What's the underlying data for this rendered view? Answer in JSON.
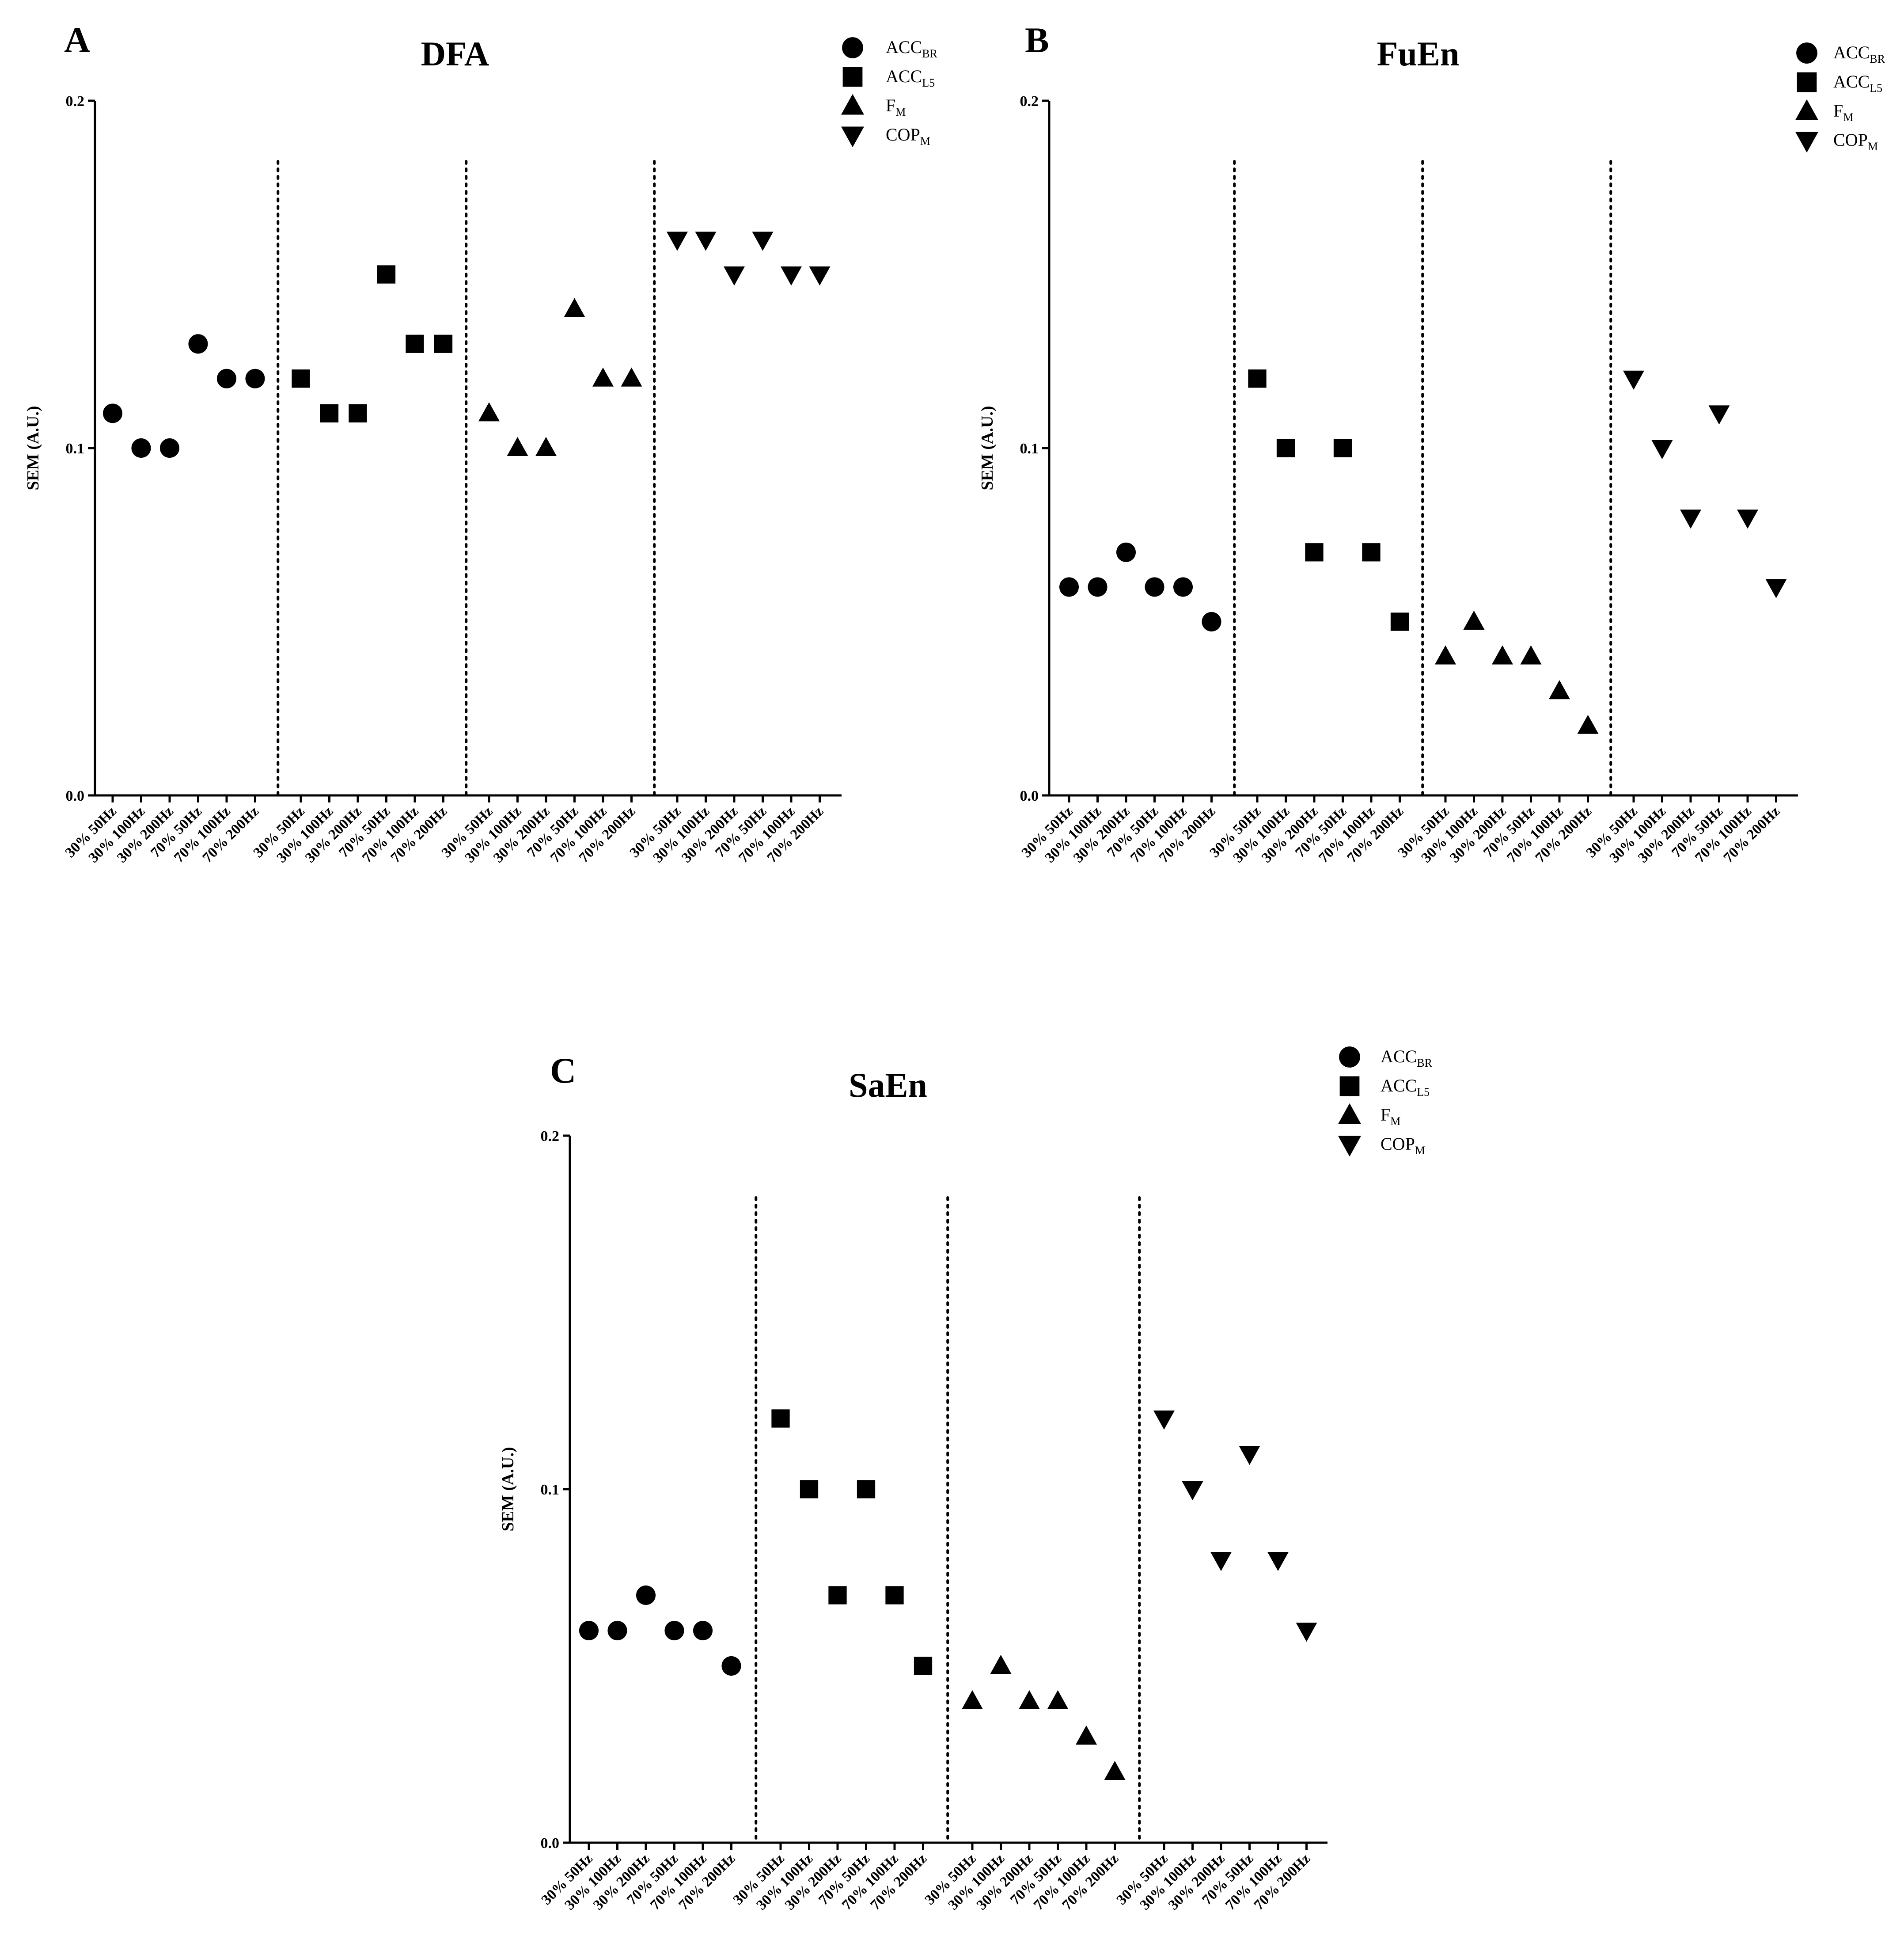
{
  "chart_data": [
    {
      "panel": "A",
      "type": "scatter",
      "title": "DFA",
      "ylabel": "SEM (A.U.)",
      "ylim": [
        0.0,
        0.2
      ],
      "yticks": [
        "0.0",
        "0.1",
        "0.2"
      ],
      "grid": false,
      "legend_position": "top-right",
      "categories": [
        "30% 50Hz",
        "30% 100Hz",
        "30% 200Hz",
        "70% 50Hz",
        "70% 100Hz",
        "70% 200Hz"
      ],
      "series": [
        {
          "name": "ACC",
          "sub": "BR",
          "marker": "circle",
          "values": [
            0.11,
            0.1,
            0.1,
            0.13,
            0.12,
            0.12
          ]
        },
        {
          "name": "ACC",
          "sub": "L5",
          "marker": "square",
          "values": [
            0.12,
            0.11,
            0.11,
            0.15,
            0.13,
            0.13
          ]
        },
        {
          "name": "F",
          "sub": "M",
          "marker": "triangle-up",
          "values": [
            0.11,
            0.1,
            0.1,
            0.14,
            0.12,
            0.12
          ]
        },
        {
          "name": "COP",
          "sub": "M",
          "marker": "triangle-down",
          "values": [
            0.16,
            0.16,
            0.15,
            0.16,
            0.15,
            0.15
          ]
        }
      ]
    },
    {
      "panel": "B",
      "type": "scatter",
      "title": "FuEn",
      "ylabel": "SEM (A.U.)",
      "ylim": [
        0.0,
        0.2
      ],
      "yticks": [
        "0.0",
        "0.1",
        "0.2"
      ],
      "grid": false,
      "legend_position": "top-right",
      "categories": [
        "30% 50Hz",
        "30% 100Hz",
        "30% 200Hz",
        "70% 50Hz",
        "70% 100Hz",
        "70% 200Hz"
      ],
      "series": [
        {
          "name": "ACC",
          "sub": "BR",
          "marker": "circle",
          "values": [
            0.06,
            0.06,
            0.07,
            0.06,
            0.06,
            0.05
          ]
        },
        {
          "name": "ACC",
          "sub": "L5",
          "marker": "square",
          "values": [
            0.12,
            0.1,
            0.07,
            0.1,
            0.07,
            0.05
          ]
        },
        {
          "name": "F",
          "sub": "M",
          "marker": "triangle-up",
          "values": [
            0.04,
            0.05,
            0.04,
            0.04,
            0.03,
            0.02
          ]
        },
        {
          "name": "COP",
          "sub": "M",
          "marker": "triangle-down",
          "values": [
            0.12,
            0.1,
            0.08,
            0.11,
            0.08,
            0.06
          ]
        }
      ]
    },
    {
      "panel": "C",
      "type": "scatter",
      "title": "SaEn",
      "ylabel": "SEM (A.U.)",
      "ylim": [
        0.0,
        0.2
      ],
      "yticks": [
        "0.0",
        "0.1",
        "0.2"
      ],
      "grid": false,
      "legend_position": "top-right",
      "categories": [
        "30% 50Hz",
        "30% 100Hz",
        "30% 200Hz",
        "70% 50Hz",
        "70% 100Hz",
        "70% 200Hz"
      ],
      "series": [
        {
          "name": "ACC",
          "sub": "BR",
          "marker": "circle",
          "values": [
            0.06,
            0.06,
            0.07,
            0.06,
            0.06,
            0.05
          ]
        },
        {
          "name": "ACC",
          "sub": "L5",
          "marker": "square",
          "values": [
            0.12,
            0.1,
            0.07,
            0.1,
            0.07,
            0.05
          ]
        },
        {
          "name": "F",
          "sub": "M",
          "marker": "triangle-up",
          "values": [
            0.04,
            0.05,
            0.04,
            0.04,
            0.03,
            0.02
          ]
        },
        {
          "name": "COP",
          "sub": "M",
          "marker": "triangle-down",
          "values": [
            0.12,
            0.1,
            0.08,
            0.11,
            0.08,
            0.06
          ]
        }
      ]
    }
  ]
}
